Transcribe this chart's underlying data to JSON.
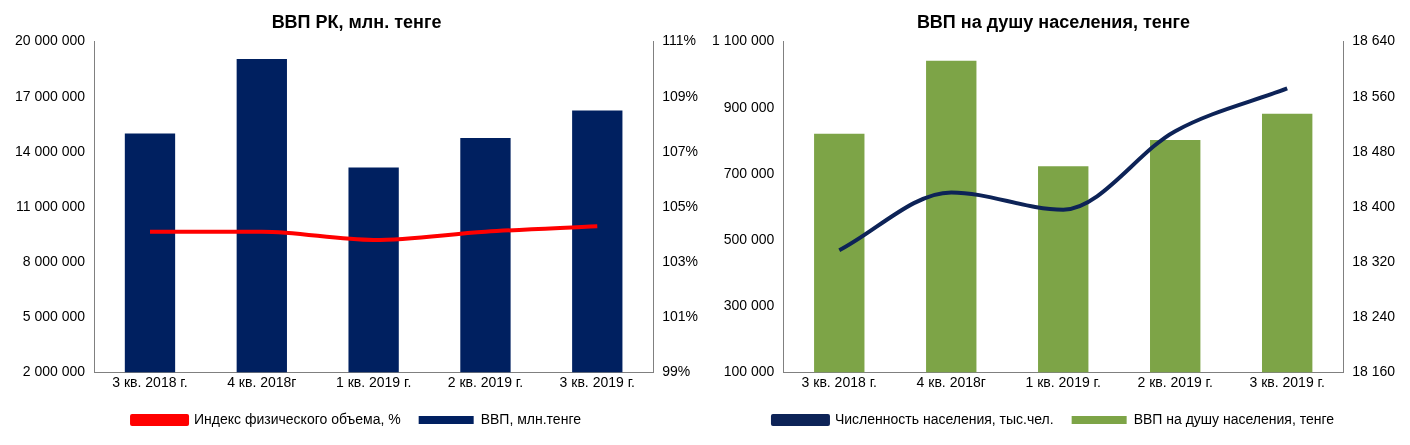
{
  "chart_data": [
    {
      "type": "bar",
      "title": "ВВП РК, млн. тенге",
      "categories": [
        "3 кв. 2018 г.",
        "4 кв. 2018г",
        "1 кв. 2019 г.",
        "2 кв. 2019 г.",
        "3 кв. 2019 г."
      ],
      "series": [
        {
          "name": "ВВП, млн.тенге",
          "color": "#002060",
          "values": [
            15000000,
            19050000,
            13150000,
            14750000,
            16250000
          ]
        },
        {
          "name": "Индекс физического объема, %",
          "type": "line",
          "axis": "y2",
          "color": "#ff0000",
          "values": [
            104.1,
            104.1,
            103.8,
            104.1,
            104.3
          ]
        }
      ],
      "ylim": [
        2000000,
        20000000
      ],
      "yticks": [
        {
          "value": 2000000,
          "label": "2 000 000"
        },
        {
          "value": 5000000,
          "label": "5 000 000"
        },
        {
          "value": 8000000,
          "label": "8 000 000"
        },
        {
          "value": 11000000,
          "label": "11 000 000"
        },
        {
          "value": 14000000,
          "label": "14 000 000"
        },
        {
          "value": 17000000,
          "label": "17 000 000"
        },
        {
          "value": 20000000,
          "label": "20 000 000"
        }
      ],
      "y2lim": [
        99,
        111
      ],
      "y2ticks": [
        {
          "value": 99,
          "label": "99%"
        },
        {
          "value": 101,
          "label": "101%"
        },
        {
          "value": 103,
          "label": "103%"
        },
        {
          "value": 105,
          "label": "105%"
        },
        {
          "value": 107,
          "label": "107%"
        },
        {
          "value": 109,
          "label": "109%"
        },
        {
          "value": 111,
          "label": "111%"
        }
      ],
      "grid": false,
      "legend": "bottom",
      "marker": "none"
    },
    {
      "type": "bar",
      "title": "ВВП на душу населения, тенге",
      "categories": [
        "3 кв. 2018 г.",
        "4 кв. 2018г",
        "1 кв. 2019 г.",
        "2 кв. 2019 г.",
        "3 кв. 2019 г."
      ],
      "series": [
        {
          "name": "ВВП на душу населения, тенге",
          "color": "#7da447",
          "values": [
            821000,
            1042000,
            723000,
            802000,
            882000
          ]
        },
        {
          "name": "Численность населения, тыс.чел.",
          "type": "line",
          "axis": "y2",
          "color": "#0d2357",
          "values": [
            18337,
            18421,
            18396,
            18510,
            18572
          ]
        }
      ],
      "ylim": [
        100000,
        1100000
      ],
      "yticks": [
        {
          "value": 100000,
          "label": "100 000"
        },
        {
          "value": 300000,
          "label": "300 000"
        },
        {
          "value": 500000,
          "label": "500 000"
        },
        {
          "value": 700000,
          "label": "700 000"
        },
        {
          "value": 900000,
          "label": "900 000"
        },
        {
          "value": 1100000,
          "label": "1 100 000"
        }
      ],
      "y2lim": [
        18160,
        18640
      ],
      "y2ticks": [
        {
          "value": 18160,
          "label": "18 160"
        },
        {
          "value": 18240,
          "label": "18 240"
        },
        {
          "value": 18320,
          "label": "18 320"
        },
        {
          "value": 18400,
          "label": "18 400"
        },
        {
          "value": 18480,
          "label": "18 480"
        },
        {
          "value": 18560,
          "label": "18 560"
        },
        {
          "value": 18640,
          "label": "18 640"
        }
      ],
      "grid": false,
      "legend": "bottom",
      "marker": "none"
    }
  ]
}
